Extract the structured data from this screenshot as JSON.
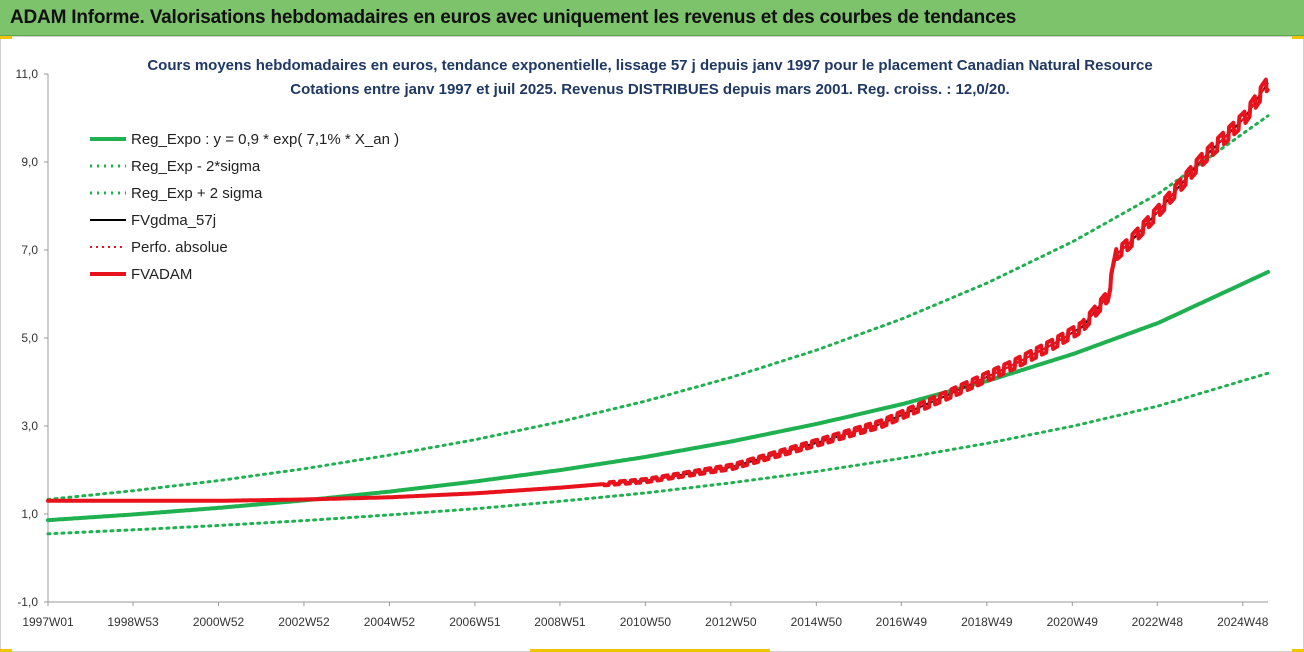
{
  "header": {
    "title": "ADAM Informe. Valorisations hebdomadaires en euros avec uniquement les revenus et des courbes de tendances"
  },
  "chart_data": {
    "type": "line",
    "title_line1": "Cours moyens hebdomadaires en euros, tendance exponentielle, lissage 57 j depuis janv 1997 pour le placement Canadian Natural Resource",
    "title_line2": "Cotations entre janv 1997 et juil 2025. Revenus DISTRIBUES depuis mars 2001. Reg. croiss. : 12,0/20.",
    "ylim": [
      -1,
      11
    ],
    "xlim": [
      1997.0,
      2025.55
    ],
    "y_ticks": [
      -1,
      1,
      3,
      5,
      7,
      9,
      11
    ],
    "y_tick_labels": [
      "-1,0",
      "1,0",
      "3,0",
      "5,0",
      "7,0",
      "9,0",
      "11,0"
    ],
    "x_ticks": [
      1997.0,
      1998.99,
      2000.99,
      2002.99,
      2004.99,
      2006.99,
      2008.98,
      2010.98,
      2012.98,
      2014.98,
      2016.97,
      2018.97,
      2020.97,
      2022.96,
      2024.96
    ],
    "x_tick_labels": [
      "1997W01",
      "1998W53",
      "2000W52",
      "2002W52",
      "2004W52",
      "2006W51",
      "2008W51",
      "2010W50",
      "2012W50",
      "2014W50",
      "2016W49",
      "2018W49",
      "2020W49",
      "2022W48",
      "2024W48"
    ],
    "grid": false,
    "legend_position": "top-left",
    "colors": {
      "trend": "#1fb050",
      "fvgdma": "#000000",
      "perfo": "#e8121d",
      "fvadam": "#e8121d",
      "title_bar": "#7dc36b",
      "subtitle": "#1f3864"
    },
    "series": [
      {
        "name": "Reg_Expo : y = 0,9 * exp( 7,1% * X_an )",
        "style": "solid",
        "x": [
          1997.0,
          1999.0,
          2001.0,
          2003.0,
          2005.0,
          2007.0,
          2009.0,
          2011.0,
          2013.0,
          2015.0,
          2017.0,
          2019.0,
          2021.0,
          2023.0,
          2025.55
        ],
        "values": [
          0.86,
          0.99,
          1.14,
          1.31,
          1.51,
          1.74,
          2.0,
          2.3,
          2.65,
          3.05,
          3.5,
          4.03,
          4.64,
          5.35,
          6.5
        ]
      },
      {
        "name": "Reg_Exp - 2*sigma",
        "style": "dotted",
        "x": [
          1997.0,
          1999.0,
          2001.0,
          2003.0,
          2005.0,
          2007.0,
          2009.0,
          2011.0,
          2013.0,
          2015.0,
          2017.0,
          2019.0,
          2021.0,
          2023.0,
          2025.55
        ],
        "values": [
          0.55,
          0.64,
          0.74,
          0.85,
          0.98,
          1.12,
          1.29,
          1.48,
          1.71,
          1.97,
          2.27,
          2.61,
          3.0,
          3.46,
          4.2
        ]
      },
      {
        "name": "Reg_Exp + 2 sigma",
        "style": "dotted",
        "x": [
          1997.0,
          1999.0,
          2001.0,
          2003.0,
          2005.0,
          2007.0,
          2009.0,
          2011.0,
          2013.0,
          2015.0,
          2017.0,
          2019.0,
          2021.0,
          2023.0,
          2025.55
        ],
        "values": [
          1.33,
          1.53,
          1.76,
          2.03,
          2.34,
          2.69,
          3.1,
          3.57,
          4.11,
          4.73,
          5.44,
          6.26,
          7.2,
          8.29,
          10.05
        ]
      },
      {
        "name": "FVgdma_57j",
        "style": "solid-thin",
        "x": [
          1997.0,
          2001.0,
          2003.0,
          2005.0,
          2007.0,
          2009.0,
          2011.0,
          2013.0,
          2015.0,
          2016.5,
          2018.0,
          2019.5,
          2020.5,
          2021.2,
          2021.8,
          2022.0,
          2022.3,
          2023.0,
          2024.0,
          2025.0,
          2025.55
        ],
        "values": [
          1.3,
          1.3,
          1.33,
          1.38,
          1.47,
          1.6,
          1.76,
          2.07,
          2.62,
          3.05,
          3.68,
          4.35,
          4.85,
          5.25,
          5.95,
          6.9,
          7.15,
          7.9,
          9.05,
          10.0,
          10.8
        ]
      },
      {
        "name": "Perfo. absolue",
        "style": "dotted",
        "x": [
          1997.0,
          2001.0,
          2003.0,
          2005.0,
          2007.0,
          2009.0,
          2011.0,
          2013.0,
          2015.0,
          2016.5,
          2018.0,
          2019.5,
          2020.5,
          2021.2,
          2021.8,
          2022.0,
          2022.3,
          2023.0,
          2024.0,
          2025.0,
          2025.55
        ],
        "values": [
          1.3,
          1.3,
          1.33,
          1.38,
          1.47,
          1.6,
          1.76,
          2.07,
          2.62,
          3.05,
          3.68,
          4.35,
          4.85,
          5.25,
          5.95,
          6.9,
          7.15,
          7.9,
          9.05,
          10.0,
          10.8
        ]
      },
      {
        "name": "FVADAM",
        "style": "solid",
        "x": [
          1997.0,
          2001.0,
          2003.0,
          2005.0,
          2007.0,
          2009.0,
          2011.0,
          2013.0,
          2015.0,
          2016.5,
          2018.0,
          2019.5,
          2020.5,
          2021.2,
          2021.8,
          2022.0,
          2022.3,
          2023.0,
          2024.0,
          2025.0,
          2025.55
        ],
        "values": [
          1.3,
          1.3,
          1.33,
          1.38,
          1.47,
          1.6,
          1.76,
          2.07,
          2.62,
          3.05,
          3.68,
          4.35,
          4.85,
          5.25,
          5.95,
          6.9,
          7.15,
          7.9,
          9.05,
          10.0,
          10.8
        ]
      }
    ]
  }
}
